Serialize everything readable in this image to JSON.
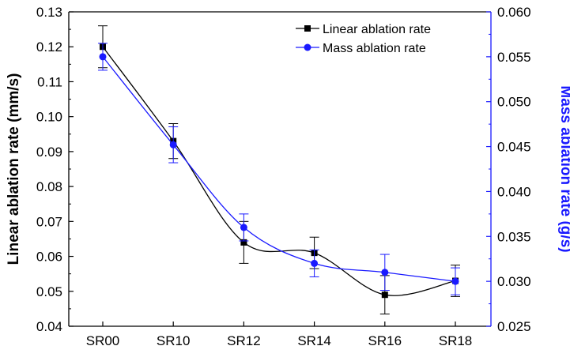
{
  "chart_data": {
    "type": "line",
    "categories": [
      "SR00",
      "SR10",
      "SR12",
      "SR14",
      "SR16",
      "SR18"
    ],
    "ylabel": "Linear ablation rate (mm/s)",
    "y2label": "Mass ablation rate (g/s)",
    "ylim": [
      0.04,
      0.13
    ],
    "y2lim": [
      0.025,
      0.06
    ],
    "yticks": [
      "0.04",
      "0.05",
      "0.06",
      "0.07",
      "0.08",
      "0.09",
      "0.10",
      "0.11",
      "0.12",
      "0.13"
    ],
    "y2ticks": [
      "0.025",
      "0.030",
      "0.035",
      "0.040",
      "0.045",
      "0.050",
      "0.055",
      "0.060"
    ],
    "grid": false,
    "legend_position": "top-right",
    "series": [
      {
        "name": "Linear ablation rate",
        "axis": "left",
        "color": "#000000",
        "marker": "square",
        "values": [
          0.12,
          0.093,
          0.064,
          0.061,
          0.049,
          0.053
        ],
        "errors": [
          0.006,
          0.005,
          0.006,
          0.0045,
          0.0055,
          0.0045
        ]
      },
      {
        "name": "Mass ablation rate",
        "axis": "right",
        "color": "#1a1aff",
        "marker": "circle",
        "values": [
          0.055,
          0.0452,
          0.036,
          0.032,
          0.031,
          0.03
        ],
        "errors": [
          0.0015,
          0.002,
          0.0015,
          0.0015,
          0.002,
          0.0015
        ]
      }
    ]
  }
}
